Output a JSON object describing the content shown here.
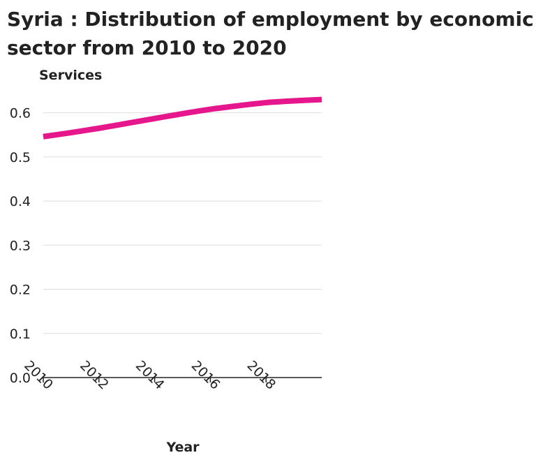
{
  "chart_data": {
    "type": "line",
    "title_lines": [
      "Syria : Distribution of employment by economic",
      "sector from 2010 to 2020"
    ],
    "ylabel": "Services",
    "xlabel": "Year",
    "x": [
      2010,
      2011,
      2012,
      2013,
      2014,
      2015,
      2016,
      2017,
      2018,
      2019,
      2020
    ],
    "series": [
      {
        "values": [
          0.546,
          0.555,
          0.565,
          0.576,
          0.587,
          0.598,
          0.608,
          0.616,
          0.623,
          0.627,
          0.63
        ]
      }
    ],
    "xlim": [
      2010,
      2020
    ],
    "ylim": [
      0,
      0.65
    ],
    "x_ticks": [
      "2010",
      "2012",
      "2014",
      "2016",
      "2018"
    ],
    "x_tick_values": [
      2010,
      2012,
      2014,
      2016,
      2018
    ],
    "y_ticks": [
      "0.0",
      "0.1",
      "0.2",
      "0.3",
      "0.4",
      "0.5",
      "0.6"
    ],
    "y_tick_values": [
      0,
      0.1,
      0.2,
      0.3,
      0.4,
      0.5,
      0.6
    ],
    "grid": true,
    "colors": {
      "line": "#e6168c",
      "grid": "#dddddd",
      "axis": "#222222"
    }
  }
}
